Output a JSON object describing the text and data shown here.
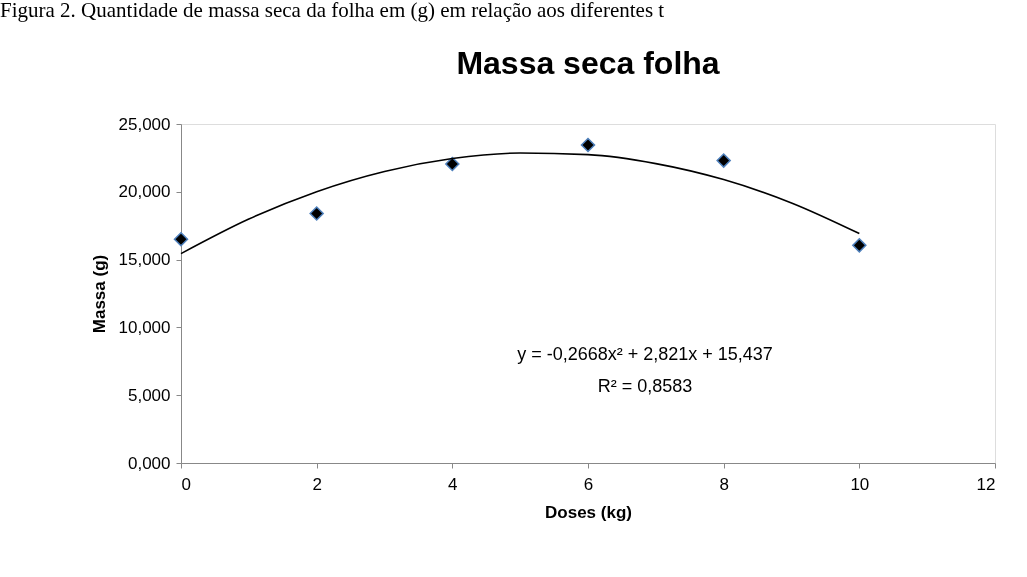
{
  "chart_data": {
    "type": "scatter",
    "title": "Massa seca folha",
    "xlabel": "Doses (kg)",
    "ylabel": "Massa (g)",
    "annotations": [
      "Figura 2. Quantidade de massa seca da folha em (g) em relação aos diferentes t",
      "y = -0,2668x² + 2,821x + 15,437",
      "R² = 0,8583"
    ],
    "x": [
      0,
      2,
      4,
      6,
      8,
      10
    ],
    "series": [
      {
        "color": "#000000",
        "marker": "diamond",
        "values": [
          16.5,
          18.4,
          22.05,
          23.45,
          22.3,
          16.05
        ]
      },
      {
        "type": "line",
        "color": "#000000",
        "marker": "none",
        "line_style": "solid",
        "x": [
          0,
          1,
          2,
          3,
          4,
          5,
          6,
          7,
          8,
          9,
          10
        ],
        "values": [
          15.44,
          17.99,
          20.01,
          21.5,
          22.45,
          22.86,
          22.74,
          22.08,
          20.9,
          19.18,
          16.92
        ]
      }
    ],
    "xlim": [
      0,
      12
    ],
    "xticks": [
      0,
      2,
      4,
      6,
      8,
      10,
      12
    ],
    "ylim": [
      0,
      25
    ],
    "yticks": [
      {
        "value": 0,
        "label": "0,000"
      },
      {
        "value": 5,
        "label": "5,000"
      },
      {
        "value": 10,
        "label": "10,000"
      },
      {
        "value": 15,
        "label": "15,000"
      },
      {
        "value": 20,
        "label": "20,000"
      },
      {
        "value": 25,
        "label": "25,000"
      }
    ],
    "grid": false
  }
}
